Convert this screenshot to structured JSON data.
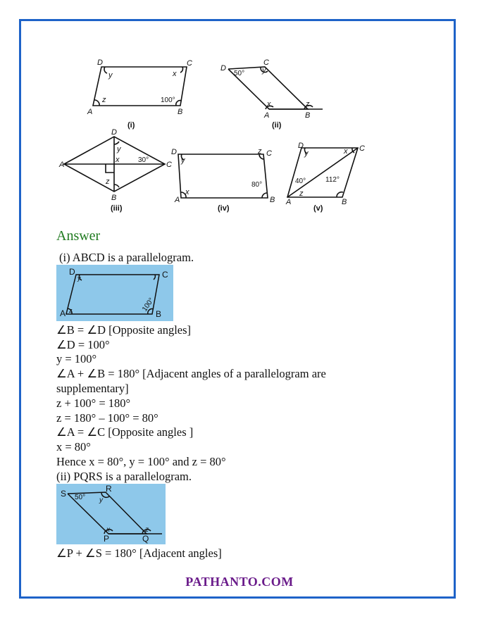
{
  "figures": {
    "i": {
      "caption": "(i)",
      "labels": {
        "A": "A",
        "B": "B",
        "C": "C",
        "D": "D"
      },
      "angles": {
        "y": "y",
        "x": "x",
        "z": "z",
        "b": "100°"
      }
    },
    "ii": {
      "caption": "(ii)",
      "labels": {
        "A": "A",
        "B": "B",
        "C": "C",
        "D": "D"
      },
      "angles": {
        "d": "50°",
        "y": "y",
        "x": "x",
        "z": "z"
      }
    },
    "iii": {
      "caption": "(iii)",
      "labels": {
        "A": "A",
        "B": "B",
        "C": "C",
        "D": "D"
      },
      "angles": {
        "y": "y",
        "x": "x",
        "z": "z",
        "c": "30°"
      }
    },
    "iv": {
      "caption": "(iv)",
      "labels": {
        "A": "A",
        "B": "B",
        "C": "C",
        "D": "D"
      },
      "angles": {
        "y": "y",
        "x": "x",
        "z": "z",
        "b": "80°"
      }
    },
    "v": {
      "caption": "(v)",
      "labels": {
        "A": "A",
        "B": "B",
        "C": "C",
        "D": "D"
      },
      "angles": {
        "y": "y",
        "x": "x",
        "z": "z",
        "a": "40°",
        "b": "112°"
      }
    }
  },
  "answer_heading": "Answer",
  "part_i": {
    "intro": "(i) ABCD is a parallelogram.",
    "figure": {
      "D": "D",
      "C": "C",
      "A": "A",
      "B": "B",
      "y": "y",
      "z": "z",
      "b": "100°"
    },
    "lines": [
      "∠B = ∠D [Opposite angles]",
      "∠D = 100°",
      " y = 100°",
      "∠A + ∠B = 180° [Adjacent angles of a parallelogram are",
      "supplementary]",
      " z + 100° = 180°",
      " z = 180° – 100° = 80°",
      "∠A = ∠C [Opposite angles ]",
      "x = 80°",
      "Hence x = 80°, y = 100° and z = 80°"
    ]
  },
  "part_ii": {
    "intro": "(ii) PQRS is a parallelogram.",
    "figure": {
      "S": "S",
      "R": "R",
      "P": "P",
      "Q": "Q",
      "s": "50°",
      "y": "y",
      "x": "x",
      "z": "z"
    },
    "lines": [
      "∠P + ∠S = 180° [Adjacent angles]"
    ]
  },
  "footer": "PATHANTO.COM"
}
